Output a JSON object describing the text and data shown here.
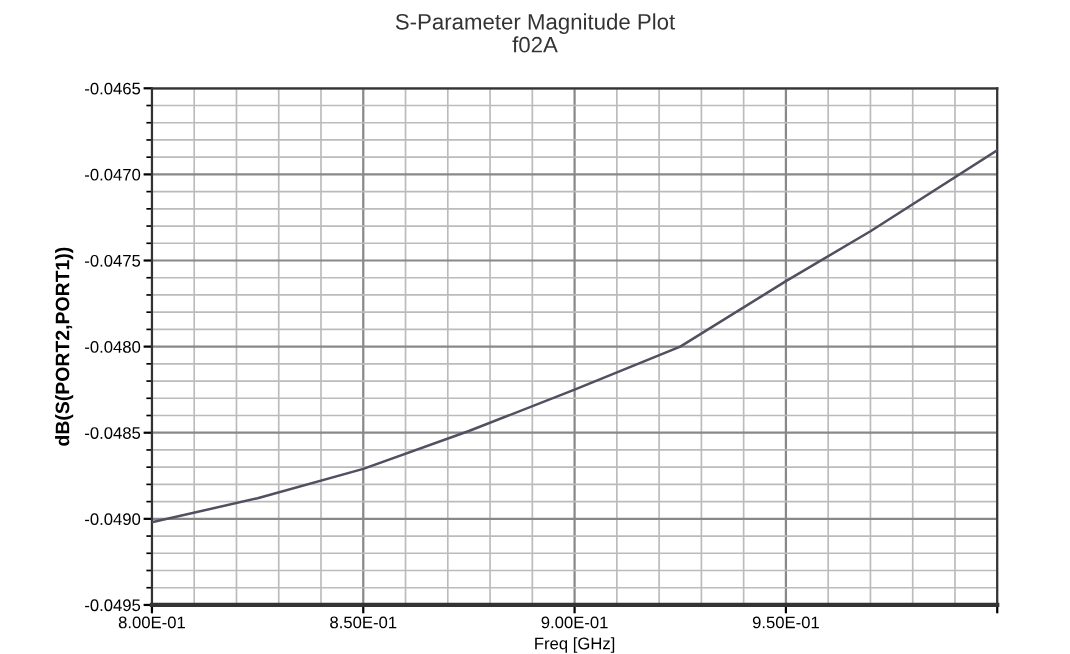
{
  "chart_data": {
    "type": "line",
    "title": "S-Parameter Magnitude Plot",
    "subtitle": "f02A",
    "xlabel": "Freq [GHz]",
    "ylabel": "dB(S(PORT2,PORT1))",
    "x": [
      0.8,
      0.825,
      0.85,
      0.875,
      0.9,
      0.925,
      0.95,
      0.97,
      1.0
    ],
    "series": [
      {
        "color": "#505060",
        "values": [
          -0.04902,
          -0.04888,
          -0.04871,
          -0.04849,
          -0.04825,
          -0.048,
          -0.04762,
          -0.04733,
          -0.04686
        ]
      }
    ],
    "xlim": [
      0.8,
      1.0
    ],
    "ylim": [
      -0.0495,
      -0.0465
    ],
    "xticks": [
      {
        "value": 0.8,
        "label": "8.00E-01"
      },
      {
        "value": 0.85,
        "label": "8.50E-01"
      },
      {
        "value": 0.9,
        "label": "9.00E-01"
      },
      {
        "value": 0.95,
        "label": "9.50E-01"
      },
      {
        "value": 1.0,
        "label": null
      }
    ],
    "yticks": [
      -0.0495,
      {
        "value": -0.049,
        "label": "-0.0490"
      },
      -0.0485,
      {
        "value": -0.048,
        "label": "-0.0480"
      },
      -0.0475,
      {
        "value": -0.047,
        "label": "-0.0470"
      },
      -0.0465
    ],
    "grid": true,
    "legend": false,
    "marker": "none",
    "line_style": "solid"
  }
}
